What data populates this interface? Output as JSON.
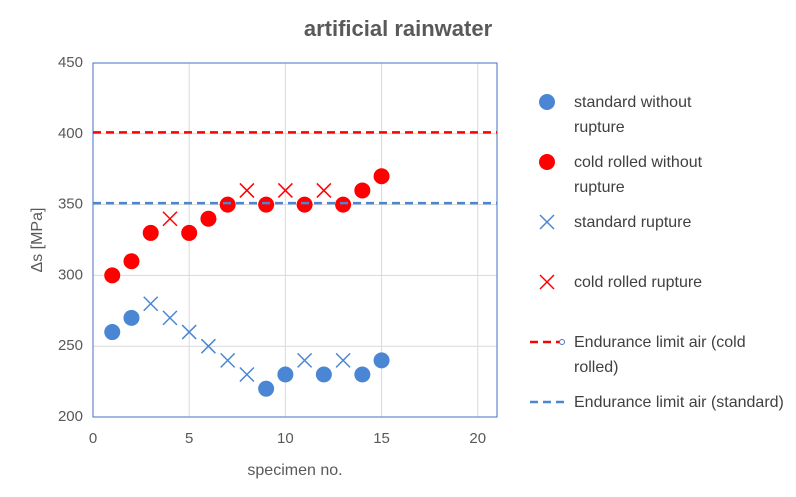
{
  "chart_data": {
    "type": "scatter",
    "title": "artificial rainwater",
    "x_label": "specimen no.",
    "y_label": "Δs [MPa]",
    "xlim": [
      0,
      21
    ],
    "xticks": [
      0,
      5,
      10,
      15,
      20
    ],
    "ylim": [
      200,
      450
    ],
    "yticks": [
      200,
      250,
      300,
      350,
      400,
      450
    ],
    "grid": true,
    "legend": "right",
    "series": [
      {
        "name": "standard without rupture",
        "marker": "circle",
        "color": "#4a86d4",
        "x": [
          1,
          2,
          9,
          10,
          12,
          14,
          15
        ],
        "values": [
          260,
          270,
          220,
          230,
          230,
          230,
          240
        ]
      },
      {
        "name": "cold rolled without rupture",
        "marker": "circle",
        "color": "#ff0000",
        "x": [
          1,
          2,
          3,
          5,
          6,
          7,
          9,
          11,
          13,
          14,
          15
        ],
        "values": [
          300,
          310,
          330,
          330,
          340,
          350,
          350,
          350,
          350,
          360,
          370
        ]
      },
      {
        "name": "standard rupture",
        "marker": "x",
        "color": "#4a86d4",
        "x": [
          3,
          4,
          5,
          6,
          7,
          8,
          11,
          13
        ],
        "values": [
          280,
          270,
          260,
          250,
          240,
          230,
          240,
          240
        ]
      },
      {
        "name": "cold rolled rupture",
        "marker": "x",
        "color": "#ff0000",
        "x": [
          4,
          8,
          10,
          12
        ],
        "values": [
          340,
          360,
          360,
          360
        ]
      },
      {
        "name": "Endurance limit air (cold rolled)",
        "marker": "hline",
        "color": "#ff0000",
        "values": [
          401
        ]
      },
      {
        "name": "Endurance limit air (standard)",
        "marker": "hline",
        "color": "#4a86d4",
        "values": [
          351
        ]
      }
    ]
  }
}
